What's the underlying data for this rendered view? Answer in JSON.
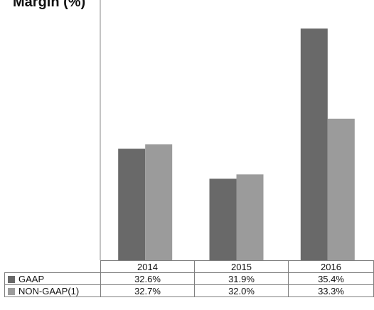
{
  "title": "Margin (%)",
  "colors": {
    "GAAP": "#696969",
    "NON-GAAP(1)": "#9b9b9b"
  },
  "chart_data": {
    "type": "bar",
    "title": "Margin (%)",
    "xlabel": "",
    "ylabel": "",
    "categories": [
      "2014",
      "2015",
      "2016"
    ],
    "series": [
      {
        "name": "GAAP",
        "values": [
          32.6,
          31.9,
          35.4
        ]
      },
      {
        "name": "NON-GAAP(1)",
        "values": [
          32.7,
          32.0,
          33.3
        ]
      }
    ],
    "ylim": [
      30.0,
      35.9
    ],
    "grid": false,
    "legend": "data-table",
    "table_labels": {
      "GAAP": [
        "32.6%",
        "31.9%",
        "35.4%"
      ],
      "NON-GAAP(1)": [
        "32.7%",
        "32.0%",
        "33.3%"
      ]
    }
  }
}
